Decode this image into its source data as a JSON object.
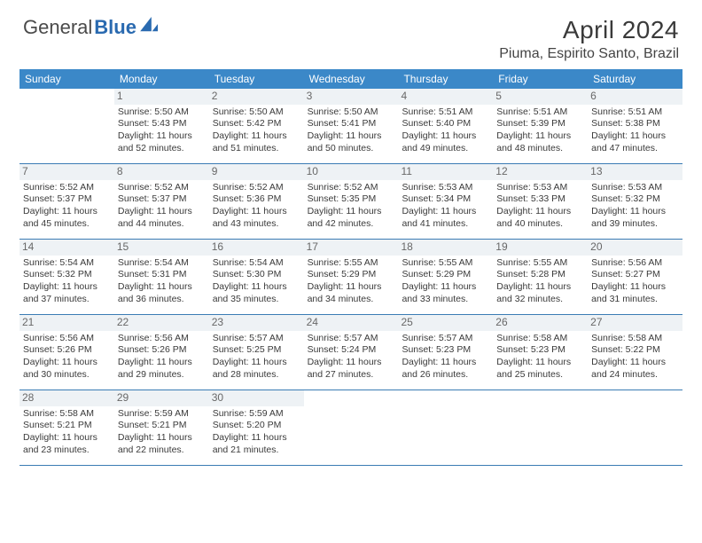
{
  "logo": {
    "text1": "General",
    "text2": "Blue"
  },
  "title": "April 2024",
  "location": "Piuma, Espirito Santo, Brazil",
  "colors": {
    "header_bg": "#3b88c8",
    "header_text": "#ffffff",
    "row_divider": "#3b7cb4",
    "daynum_bg": "#eef2f5",
    "body_text": "#3a3a3a",
    "logo_blue": "#2a6ab0"
  },
  "days_of_week": [
    "Sunday",
    "Monday",
    "Tuesday",
    "Wednesday",
    "Thursday",
    "Friday",
    "Saturday"
  ],
  "weeks": [
    [
      null,
      {
        "n": "1",
        "sr": "5:50 AM",
        "ss": "5:43 PM",
        "dl1": "11 hours",
        "dl2": "and 52 minutes."
      },
      {
        "n": "2",
        "sr": "5:50 AM",
        "ss": "5:42 PM",
        "dl1": "11 hours",
        "dl2": "and 51 minutes."
      },
      {
        "n": "3",
        "sr": "5:50 AM",
        "ss": "5:41 PM",
        "dl1": "11 hours",
        "dl2": "and 50 minutes."
      },
      {
        "n": "4",
        "sr": "5:51 AM",
        "ss": "5:40 PM",
        "dl1": "11 hours",
        "dl2": "and 49 minutes."
      },
      {
        "n": "5",
        "sr": "5:51 AM",
        "ss": "5:39 PM",
        "dl1": "11 hours",
        "dl2": "and 48 minutes."
      },
      {
        "n": "6",
        "sr": "5:51 AM",
        "ss": "5:38 PM",
        "dl1": "11 hours",
        "dl2": "and 47 minutes."
      }
    ],
    [
      {
        "n": "7",
        "sr": "5:52 AM",
        "ss": "5:37 PM",
        "dl1": "11 hours",
        "dl2": "and 45 minutes."
      },
      {
        "n": "8",
        "sr": "5:52 AM",
        "ss": "5:37 PM",
        "dl1": "11 hours",
        "dl2": "and 44 minutes."
      },
      {
        "n": "9",
        "sr": "5:52 AM",
        "ss": "5:36 PM",
        "dl1": "11 hours",
        "dl2": "and 43 minutes."
      },
      {
        "n": "10",
        "sr": "5:52 AM",
        "ss": "5:35 PM",
        "dl1": "11 hours",
        "dl2": "and 42 minutes."
      },
      {
        "n": "11",
        "sr": "5:53 AM",
        "ss": "5:34 PM",
        "dl1": "11 hours",
        "dl2": "and 41 minutes."
      },
      {
        "n": "12",
        "sr": "5:53 AM",
        "ss": "5:33 PM",
        "dl1": "11 hours",
        "dl2": "and 40 minutes."
      },
      {
        "n": "13",
        "sr": "5:53 AM",
        "ss": "5:32 PM",
        "dl1": "11 hours",
        "dl2": "and 39 minutes."
      }
    ],
    [
      {
        "n": "14",
        "sr": "5:54 AM",
        "ss": "5:32 PM",
        "dl1": "11 hours",
        "dl2": "and 37 minutes."
      },
      {
        "n": "15",
        "sr": "5:54 AM",
        "ss": "5:31 PM",
        "dl1": "11 hours",
        "dl2": "and 36 minutes."
      },
      {
        "n": "16",
        "sr": "5:54 AM",
        "ss": "5:30 PM",
        "dl1": "11 hours",
        "dl2": "and 35 minutes."
      },
      {
        "n": "17",
        "sr": "5:55 AM",
        "ss": "5:29 PM",
        "dl1": "11 hours",
        "dl2": "and 34 minutes."
      },
      {
        "n": "18",
        "sr": "5:55 AM",
        "ss": "5:29 PM",
        "dl1": "11 hours",
        "dl2": "and 33 minutes."
      },
      {
        "n": "19",
        "sr": "5:55 AM",
        "ss": "5:28 PM",
        "dl1": "11 hours",
        "dl2": "and 32 minutes."
      },
      {
        "n": "20",
        "sr": "5:56 AM",
        "ss": "5:27 PM",
        "dl1": "11 hours",
        "dl2": "and 31 minutes."
      }
    ],
    [
      {
        "n": "21",
        "sr": "5:56 AM",
        "ss": "5:26 PM",
        "dl1": "11 hours",
        "dl2": "and 30 minutes."
      },
      {
        "n": "22",
        "sr": "5:56 AM",
        "ss": "5:26 PM",
        "dl1": "11 hours",
        "dl2": "and 29 minutes."
      },
      {
        "n": "23",
        "sr": "5:57 AM",
        "ss": "5:25 PM",
        "dl1": "11 hours",
        "dl2": "and 28 minutes."
      },
      {
        "n": "24",
        "sr": "5:57 AM",
        "ss": "5:24 PM",
        "dl1": "11 hours",
        "dl2": "and 27 minutes."
      },
      {
        "n": "25",
        "sr": "5:57 AM",
        "ss": "5:23 PM",
        "dl1": "11 hours",
        "dl2": "and 26 minutes."
      },
      {
        "n": "26",
        "sr": "5:58 AM",
        "ss": "5:23 PM",
        "dl1": "11 hours",
        "dl2": "and 25 minutes."
      },
      {
        "n": "27",
        "sr": "5:58 AM",
        "ss": "5:22 PM",
        "dl1": "11 hours",
        "dl2": "and 24 minutes."
      }
    ],
    [
      {
        "n": "28",
        "sr": "5:58 AM",
        "ss": "5:21 PM",
        "dl1": "11 hours",
        "dl2": "and 23 minutes."
      },
      {
        "n": "29",
        "sr": "5:59 AM",
        "ss": "5:21 PM",
        "dl1": "11 hours",
        "dl2": "and 22 minutes."
      },
      {
        "n": "30",
        "sr": "5:59 AM",
        "ss": "5:20 PM",
        "dl1": "11 hours",
        "dl2": "and 21 minutes."
      },
      null,
      null,
      null,
      null
    ]
  ],
  "labels": {
    "sunrise": "Sunrise:",
    "sunset": "Sunset:",
    "daylight": "Daylight:"
  }
}
